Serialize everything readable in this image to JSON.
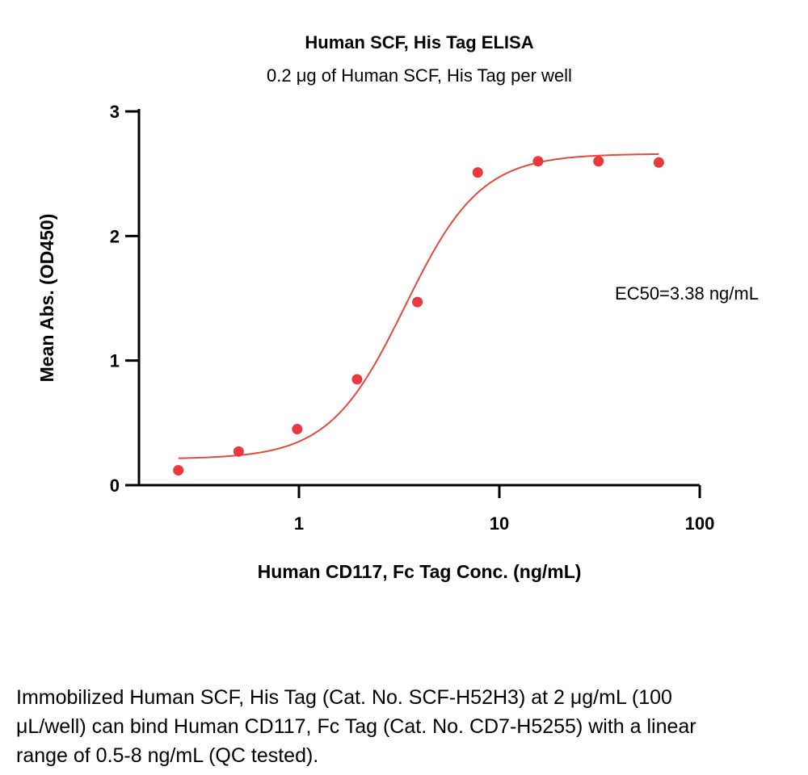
{
  "chart_data": {
    "type": "scatter",
    "title": "Human SCF, His Tag ELISA",
    "subtitle": "0.2 μg of Human SCF, His Tag per well",
    "xlabel": "Human CD117, Fc Tag Conc. (ng/mL)",
    "ylabel": "Mean Abs. (OD450)",
    "xscale": "log",
    "xlim": [
      0.2,
      100
    ],
    "ylim": [
      0,
      3
    ],
    "x_ticks": [
      {
        "value": 1,
        "label": "1"
      },
      {
        "value": 10,
        "label": "10"
      },
      {
        "value": 100,
        "label": "100"
      }
    ],
    "y_ticks": [
      {
        "value": 0,
        "label": "0"
      },
      {
        "value": 1,
        "label": "1"
      },
      {
        "value": 2,
        "label": "2"
      },
      {
        "value": 3,
        "label": "3"
      }
    ],
    "grid": false,
    "annotation": "EC50=3.38 ng/mL",
    "marker_color": "#e8393d",
    "line_color": "#e34a3f",
    "series": [
      {
        "x": [
          0.25,
          0.5,
          0.98,
          1.95,
          3.9,
          7.8,
          15.6,
          31.25,
          62.5
        ],
        "y": [
          0.12,
          0.27,
          0.45,
          0.85,
          1.47,
          2.51,
          2.6,
          2.6,
          2.59
        ]
      }
    ],
    "fit": {
      "model": "4PL",
      "bottom": 0.21,
      "top": 2.66,
      "ec50": 3.38,
      "hill": 2.3,
      "x_range": [
        0.25,
        62.5
      ]
    }
  },
  "caption": "Immobilized Human SCF, His Tag (Cat. No. SCF-H52H3) at 2 μg/mL (100 μL/well) can bind Human CD117, Fc Tag (Cat. No. CD7-H5255) with a linear range of 0.5-8 ng/mL (QC tested)."
}
